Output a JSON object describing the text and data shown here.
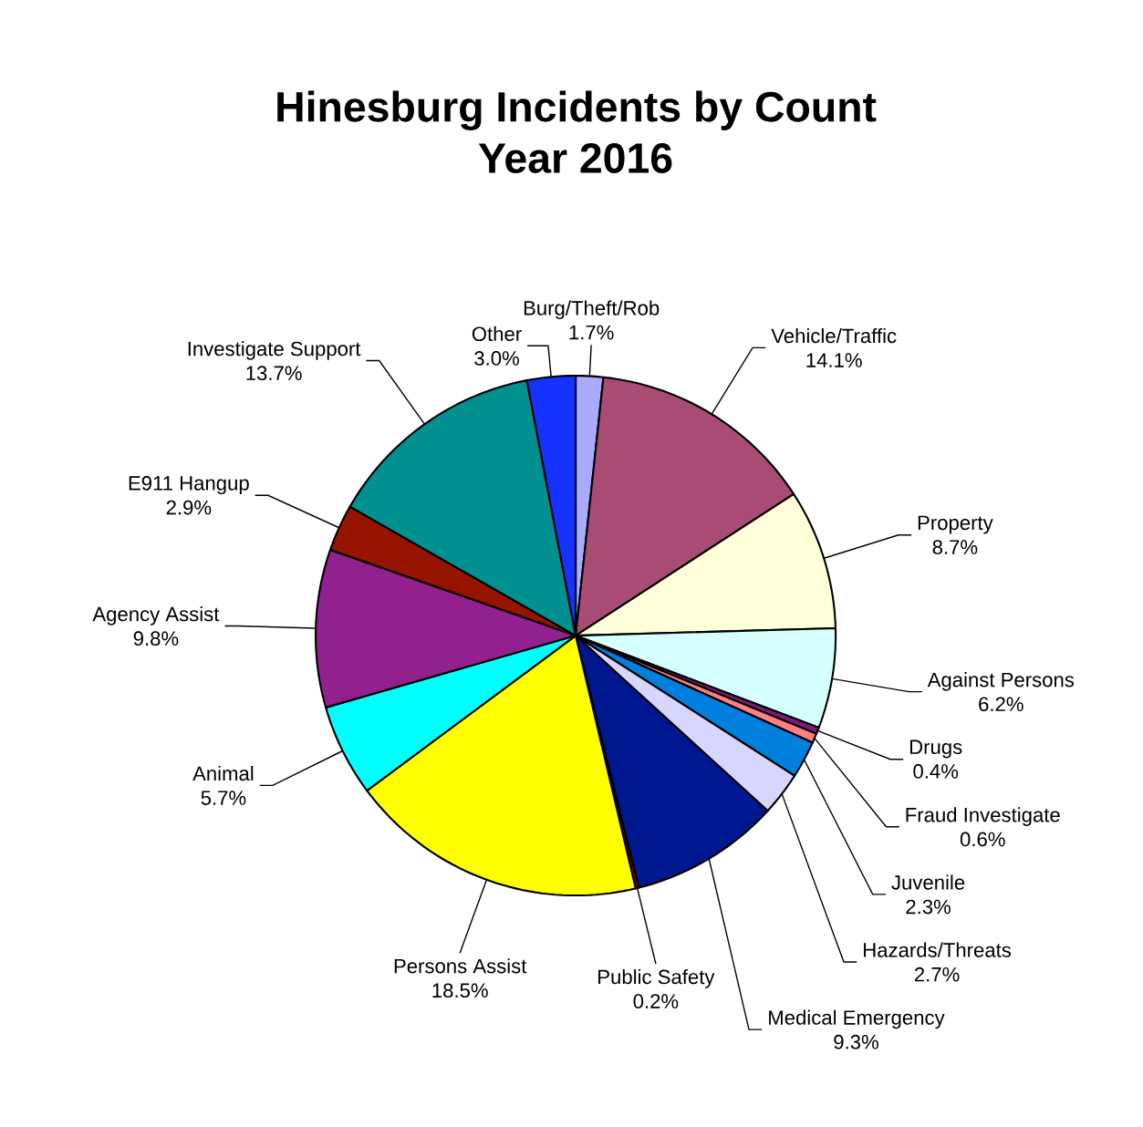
{
  "chart_data": {
    "type": "pie",
    "title": "Hinesburg Incidents by Count",
    "subtitle": "Year 2016",
    "categories": [
      "Burg/Theft/Rob",
      "Vehicle/Traffic",
      "Property",
      "Against Persons",
      "Drugs",
      "Fraud Investigate",
      "Juvenile",
      "Hazards/Threats",
      "Medical Emergency",
      "Public Safety",
      "Persons Assist",
      "Animal",
      "Agency Assist",
      "E911 Hangup",
      "Investigate Support",
      "Other"
    ],
    "values": [
      1.7,
      14.1,
      8.7,
      6.2,
      0.4,
      0.6,
      2.3,
      2.7,
      9.3,
      0.2,
      18.5,
      5.7,
      9.8,
      2.9,
      13.7,
      3.0
    ],
    "value_labels": [
      "1.7%",
      "14.1%",
      "8.7%",
      "6.2%",
      "0.4%",
      "0.6%",
      "2.3%",
      "2.7%",
      "9.3%",
      "0.2%",
      "18.5%",
      "5.7%",
      "9.8%",
      "2.9%",
      "13.7%",
      "3.0%"
    ],
    "colors": [
      "#aaaaff",
      "#a84c74",
      "#ffffd9",
      "#d6ffff",
      "#7f1a7f",
      "#ff8080",
      "#0080dd",
      "#d6d6ff",
      "#00188f",
      "#800000",
      "#ffff00",
      "#00ffff",
      "#93208f",
      "#961300",
      "#009090",
      "#1533ff"
    ]
  }
}
